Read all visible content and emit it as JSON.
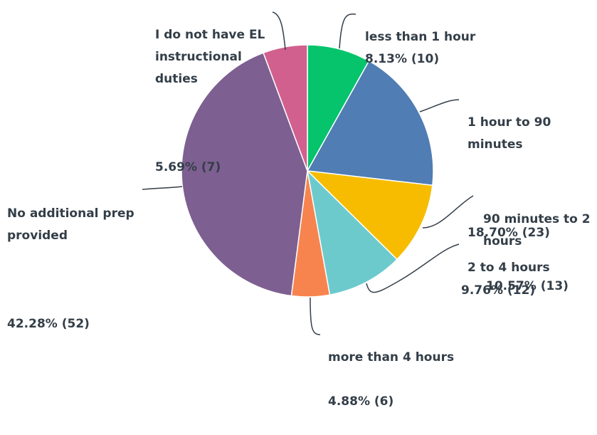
{
  "chart_data": {
    "type": "pie",
    "title": "",
    "slices": [
      {
        "label": "less than 1 hour",
        "percent": "8.13%",
        "count": 10,
        "value": 8.13,
        "color": "#05c46b"
      },
      {
        "label": "1 hour to 90 minutes",
        "percent": "18.70%",
        "count": 23,
        "value": 18.7,
        "color": "#4f7db4"
      },
      {
        "label": "90 minutes to 2 hours",
        "percent": "10.57%",
        "count": 13,
        "value": 10.57,
        "color": "#f7bc00"
      },
      {
        "label": "2 to 4 hours",
        "percent": "9.76%",
        "count": 12,
        "value": 9.76,
        "color": "#6ccacd"
      },
      {
        "label": "more than 4 hours",
        "percent": "4.88%",
        "count": 6,
        "value": 4.88,
        "color": "#f7844f"
      },
      {
        "label": "No additional prep provided",
        "percent": "42.28%",
        "count": 52,
        "value": 42.28,
        "color": "#7d5f91"
      },
      {
        "label": "I do not have EL instructional duties",
        "percent": "5.69%",
        "count": 7,
        "value": 5.69,
        "color": "#d1608e"
      }
    ],
    "display": {
      "less_than_1_hour": {
        "name": "less than 1 hour",
        "value": "8.13% (10)"
      },
      "hour_to_90": {
        "name": "1 hour to 90\nminutes",
        "value": "18.70% (23)"
      },
      "min90_to_2h": {
        "name": "90 minutes to 2\nhours",
        "value": "10.57% (13)"
      },
      "h2_to_4": {
        "name": "2 to 4 hours",
        "value": "9.76% (12)"
      },
      "more_than_4": {
        "name": "more than 4 hours",
        "value": "4.88% (6)"
      },
      "no_prep": {
        "name": "No additional prep\nprovided",
        "value": "42.28% (52)"
      },
      "no_el": {
        "name": "I do not have EL\ninstructional\nduties",
        "value": "5.69% (7)"
      }
    }
  }
}
